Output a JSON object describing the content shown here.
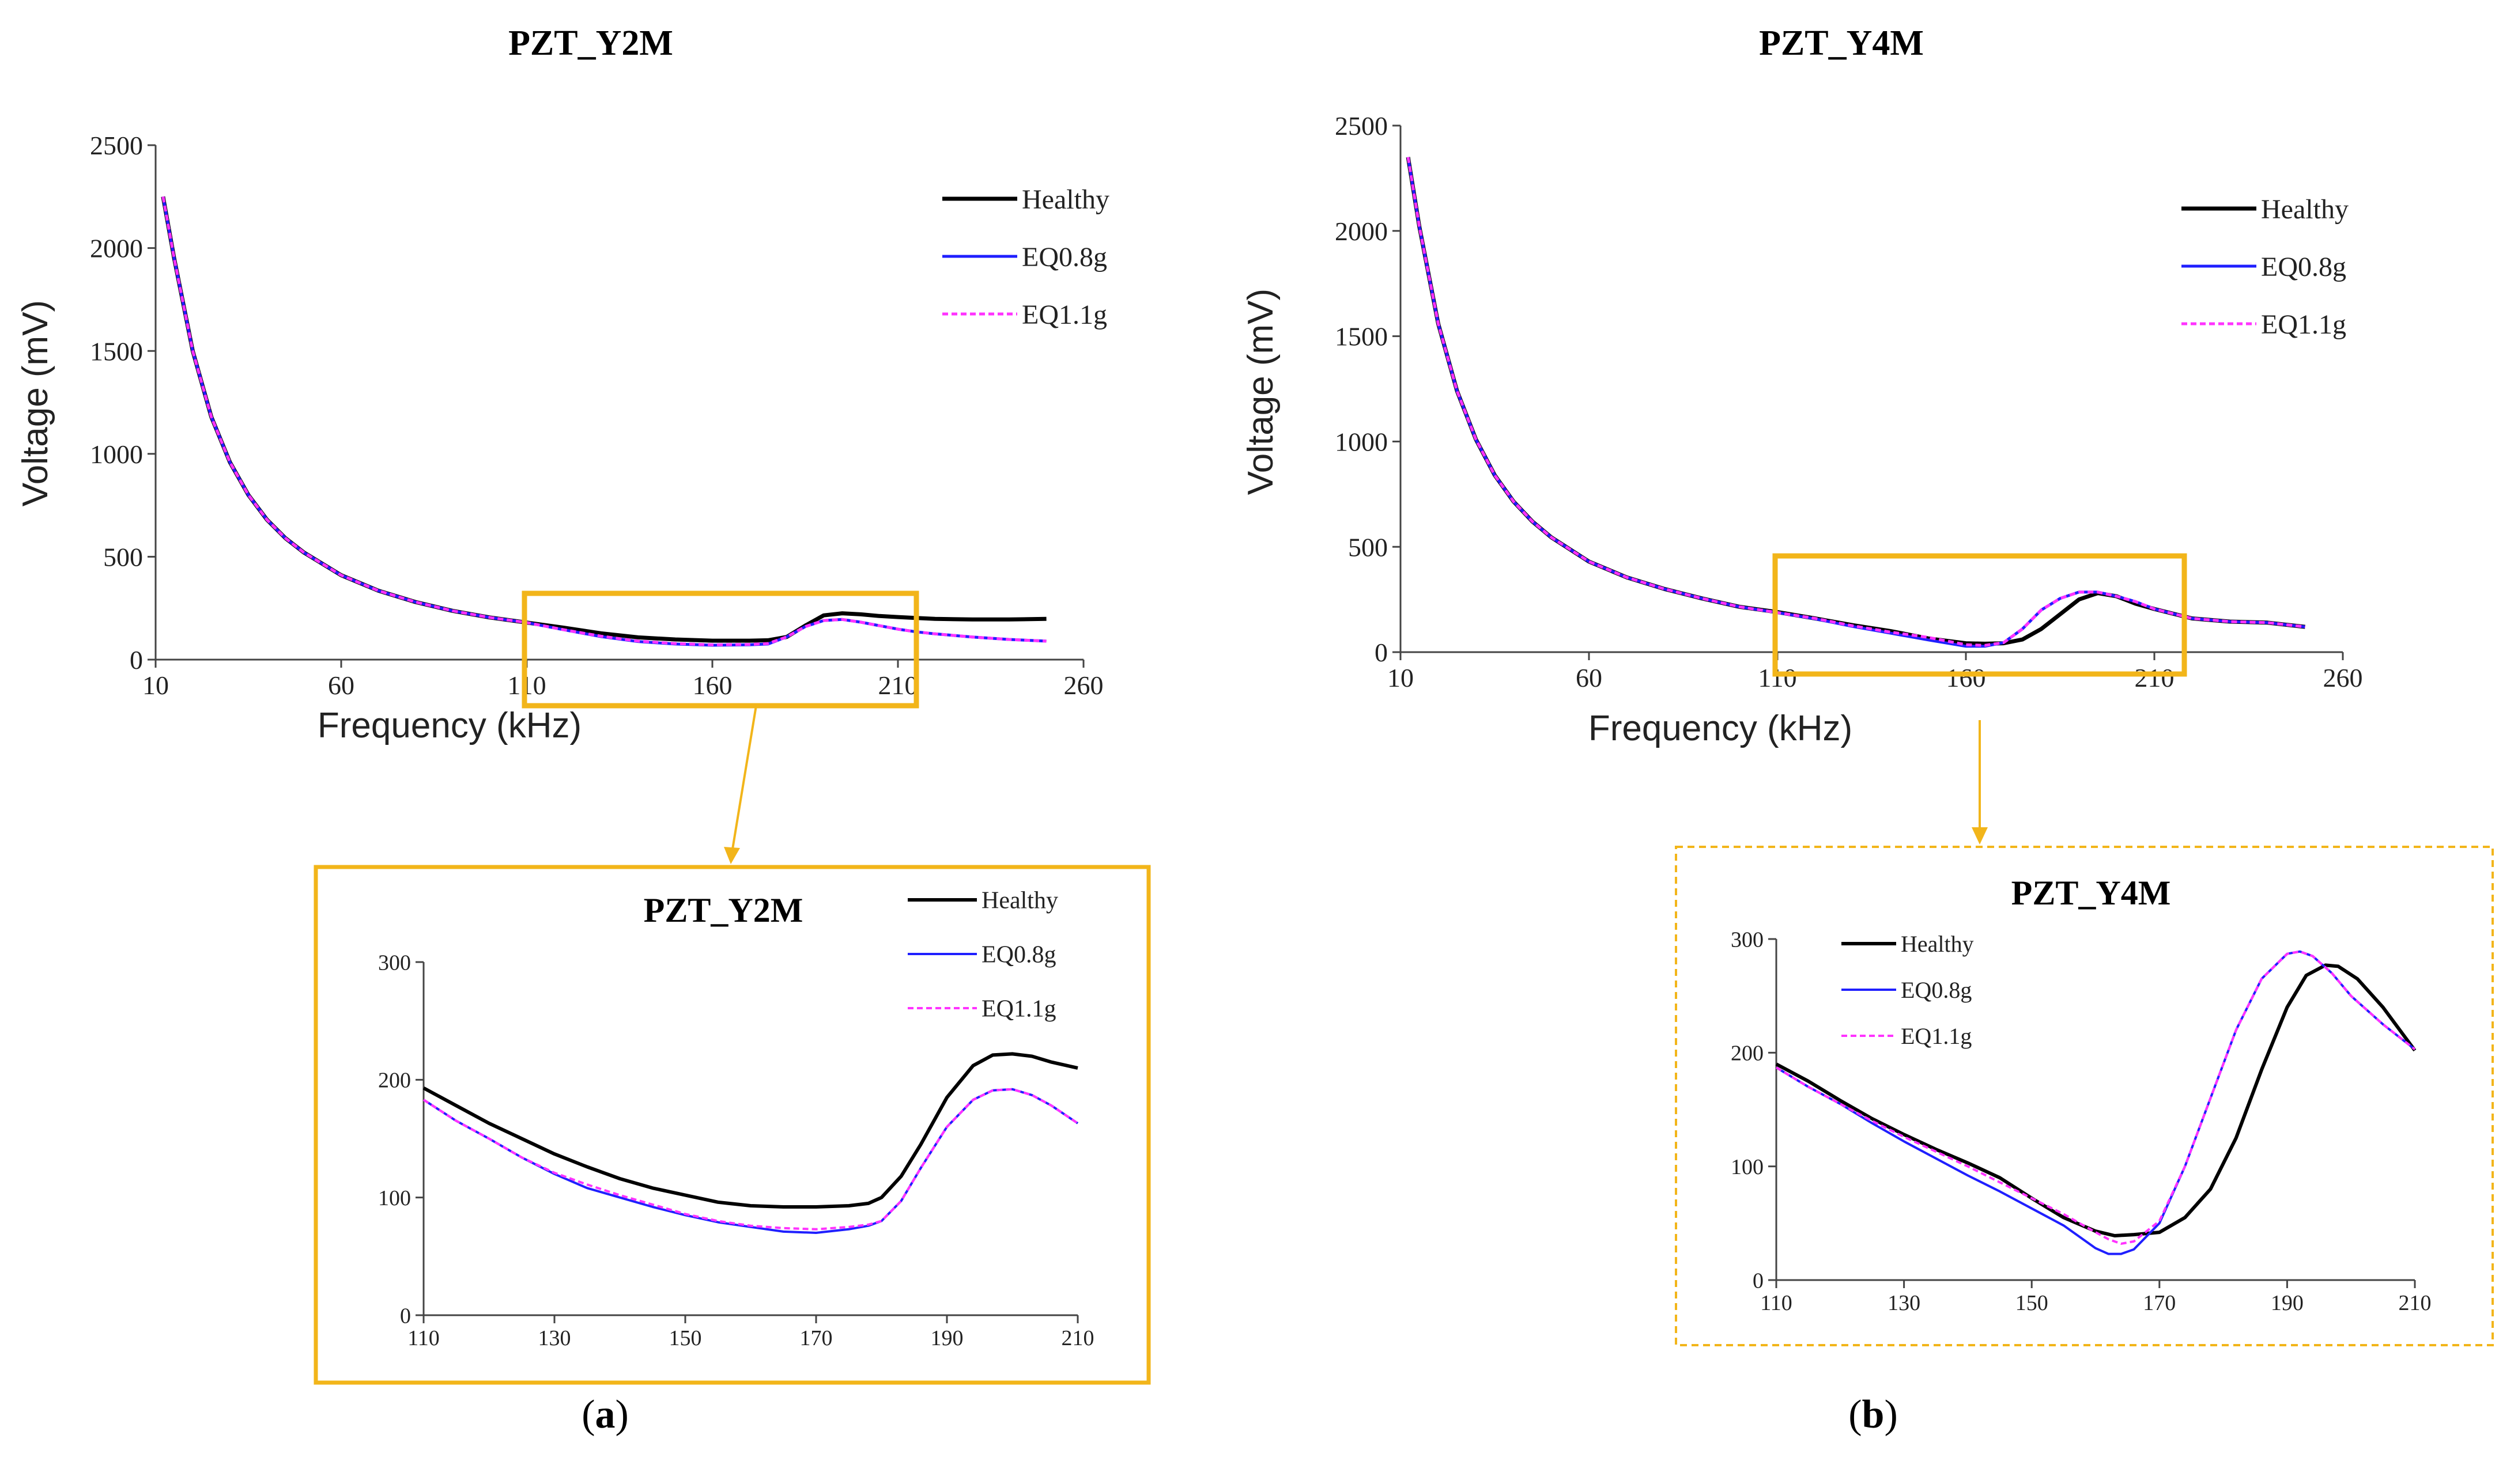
{
  "panels": [
    {
      "label": "a",
      "colors": {
        "Healthy": "#000000",
        "EQ0.8g": "#1f1fff",
        "EQ1.1g": "#ff33ff",
        "zoom_box": "#f2b51a"
      },
      "main": {
        "type": "line",
        "title": "PZT_Y2M",
        "xlabel": "Frequency (kHz)",
        "ylabel": "Voltage (mV)",
        "xlim": [
          10,
          260
        ],
        "ylim": [
          0,
          2500
        ],
        "xticks": [
          "10",
          "60",
          "110",
          "160",
          "210",
          "260"
        ],
        "yticks": [
          "0",
          "500",
          "1000",
          "1500",
          "2000",
          "2500"
        ],
        "legend": [
          "Healthy",
          "EQ0.8g",
          "EQ1.1g"
        ],
        "series": [
          {
            "name": "Healthy",
            "x": [
              12,
              15,
              20,
              25,
              30,
              35,
              40,
              45,
              50,
              60,
              70,
              80,
              90,
              100,
              110,
              120,
              130,
              140,
              150,
              160,
              170,
              175,
              180,
              185,
              190,
              195,
              200,
              205,
              210,
              215,
              220,
              230,
              240,
              250
            ],
            "y": [
              2250,
              1950,
              1500,
              1180,
              960,
              800,
              680,
              590,
              520,
              410,
              335,
              280,
              237,
              205,
              180,
              155,
              128,
              108,
              98,
              92,
              92,
              94,
              110,
              165,
              215,
              225,
              220,
              212,
              207,
              202,
              198,
              195,
              195,
              198
            ]
          },
          {
            "name": "EQ0.8g",
            "x": [
              12,
              15,
              20,
              25,
              30,
              35,
              40,
              45,
              50,
              60,
              70,
              80,
              90,
              100,
              110,
              120,
              130,
              140,
              150,
              160,
              170,
              175,
              180,
              185,
              190,
              195,
              200,
              205,
              210,
              215,
              220,
              230,
              240,
              250
            ],
            "y": [
              2250,
              1950,
              1500,
              1180,
              960,
              800,
              680,
              590,
              520,
              410,
              335,
              280,
              237,
              205,
              180,
              145,
              112,
              88,
              76,
              70,
              72,
              76,
              110,
              160,
              190,
              195,
              182,
              165,
              148,
              135,
              125,
              110,
              98,
              90
            ]
          },
          {
            "name": "EQ1.1g",
            "x": [
              12,
              15,
              20,
              25,
              30,
              35,
              40,
              45,
              50,
              60,
              70,
              80,
              90,
              100,
              110,
              120,
              130,
              140,
              150,
              160,
              170,
              175,
              180,
              185,
              190,
              195,
              200,
              205,
              210,
              215,
              220,
              230,
              240,
              250
            ],
            "y": [
              2250,
              1950,
              1500,
              1180,
              960,
              800,
              680,
              590,
              520,
              410,
              335,
              280,
              237,
              205,
              180,
              145,
              114,
              90,
              78,
              72,
              74,
              78,
              110,
              160,
              190,
              195,
              182,
              165,
              148,
              135,
              125,
              110,
              98,
              90
            ]
          }
        ]
      },
      "inset": {
        "type": "line",
        "title": "PZT_Y2M",
        "xlim": [
          110,
          210
        ],
        "ylim": [
          0,
          300
        ],
        "xticks": [
          "110",
          "130",
          "150",
          "170",
          "190",
          "210"
        ],
        "yticks": [
          "0",
          "100",
          "200",
          "300"
        ],
        "legend": [
          "Healthy",
          "EQ0.8g",
          "EQ1.1g"
        ],
        "series": [
          {
            "name": "Healthy",
            "x": [
              110,
              115,
              120,
              125,
              130,
              135,
              140,
              145,
              150,
              155,
              160,
              165,
              170,
              175,
              178,
              180,
              183,
              186,
              190,
              194,
              197,
              200,
              203,
              206,
              210
            ],
            "y": [
              193,
              178,
              163,
              150,
              137,
              126,
              116,
              108,
              102,
              96,
              93,
              92,
              92,
              93,
              95,
              100,
              118,
              145,
              185,
              212,
              221,
              222,
              220,
              215,
              210
            ]
          },
          {
            "name": "EQ0.8g",
            "x": [
              110,
              115,
              120,
              125,
              130,
              135,
              140,
              145,
              150,
              155,
              160,
              165,
              170,
              175,
              178,
              180,
              183,
              186,
              190,
              194,
              197,
              200,
              203,
              206,
              210
            ],
            "y": [
              183,
              165,
              150,
              134,
              120,
              108,
              100,
              92,
              85,
              79,
              75,
              71,
              70,
              73,
              76,
              80,
              97,
              125,
              160,
              183,
              191,
              192,
              187,
              178,
              163
            ]
          },
          {
            "name": "EQ1.1g",
            "x": [
              110,
              115,
              120,
              125,
              130,
              135,
              140,
              145,
              150,
              155,
              160,
              165,
              170,
              175,
              178,
              180,
              183,
              186,
              190,
              194,
              197,
              200,
              203,
              206,
              210
            ],
            "y": [
              183,
              165,
              150,
              134,
              121,
              111,
              102,
              94,
              86,
              80,
              76,
              74,
              73,
              75,
              77,
              80,
              97,
              125,
              160,
              183,
              191,
              192,
              187,
              178,
              163
            ]
          }
        ]
      }
    },
    {
      "label": "b",
      "colors": {
        "Healthy": "#000000",
        "EQ0.8g": "#1f1fff",
        "EQ1.1g": "#ff33ff",
        "zoom_box": "#f2b51a"
      },
      "main": {
        "type": "line",
        "title": "PZT_Y4M",
        "xlabel": "Frequency (kHz)",
        "ylabel": "Voltage (mV)",
        "xlim": [
          10,
          260
        ],
        "ylim": [
          0,
          2500
        ],
        "xticks": [
          "10",
          "60",
          "110",
          "160",
          "210",
          "260"
        ],
        "yticks": [
          "0",
          "500",
          "1000",
          "1500",
          "2000",
          "2500"
        ],
        "legend": [
          "Healthy",
          "EQ0.8g",
          "EQ1.1g"
        ],
        "series": [
          {
            "name": "Healthy",
            "x": [
              12,
              15,
              20,
              25,
              30,
              35,
              40,
              45,
              50,
              60,
              70,
              80,
              90,
              100,
              110,
              120,
              130,
              140,
              150,
              160,
              165,
              170,
              175,
              180,
              185,
              190,
              195,
              200,
              205,
              210,
              220,
              230,
              240,
              250
            ],
            "y": [
              2350,
              2020,
              1560,
              1240,
              1010,
              840,
              715,
              620,
              545,
              430,
              355,
              300,
              255,
              215,
              190,
              160,
              128,
              100,
              65,
              42,
              40,
              42,
              60,
              110,
              180,
              250,
              280,
              265,
              230,
              205,
              160,
              145,
              140,
              120
            ]
          },
          {
            "name": "EQ0.8g",
            "x": [
              12,
              15,
              20,
              25,
              30,
              35,
              40,
              45,
              50,
              60,
              70,
              80,
              90,
              100,
              110,
              120,
              130,
              140,
              150,
              160,
              165,
              170,
              175,
              180,
              185,
              190,
              195,
              200,
              205,
              210,
              220,
              230,
              240,
              250
            ],
            "y": [
              2350,
              2020,
              1560,
              1240,
              1010,
              840,
              715,
              620,
              545,
              430,
              355,
              300,
              255,
              215,
              188,
              158,
              122,
              90,
              58,
              28,
              28,
              45,
              110,
              200,
              255,
              285,
              285,
              265,
              240,
              205,
              160,
              145,
              140,
              120
            ]
          },
          {
            "name": "EQ1.1g",
            "x": [
              12,
              15,
              20,
              25,
              30,
              35,
              40,
              45,
              50,
              60,
              70,
              80,
              90,
              100,
              110,
              120,
              130,
              140,
              150,
              160,
              165,
              170,
              175,
              180,
              185,
              190,
              195,
              200,
              205,
              210,
              220,
              230,
              240,
              250
            ],
            "y": [
              2350,
              2020,
              1560,
              1240,
              1010,
              840,
              715,
              620,
              545,
              430,
              355,
              300,
              255,
              215,
              188,
              160,
              125,
              95,
              70,
              35,
              32,
              45,
              110,
              200,
              255,
              285,
              285,
              265,
              240,
              205,
              160,
              145,
              140,
              120
            ]
          }
        ]
      },
      "inset": {
        "type": "line",
        "title": "PZT_Y4M",
        "xlim": [
          110,
          210
        ],
        "ylim": [
          0,
          300
        ],
        "xticks": [
          "110",
          "130",
          "150",
          "170",
          "190",
          "210"
        ],
        "yticks": [
          "0",
          "100",
          "200",
          "300"
        ],
        "legend": [
          "Healthy",
          "EQ0.8g",
          "EQ1.1g"
        ],
        "series": [
          {
            "name": "Healthy",
            "x": [
              110,
              115,
              120,
              125,
              130,
              135,
              140,
              145,
              150,
              155,
              160,
              163,
              166,
              170,
              174,
              178,
              182,
              186,
              190,
              193,
              196,
              198,
              201,
              205,
              210
            ],
            "y": [
              190,
              175,
              158,
              142,
              128,
              115,
              103,
              90,
              72,
              55,
              43,
              39,
              40,
              42,
              55,
              80,
              125,
              185,
              240,
              268,
              277,
              276,
              265,
              240,
              202
            ]
          },
          {
            "name": "EQ0.8g",
            "x": [
              110,
              115,
              120,
              125,
              130,
              135,
              140,
              145,
              150,
              155,
              160,
              162,
              164,
              166,
              170,
              174,
              178,
              182,
              186,
              190,
              192,
              194,
              197,
              200,
              205,
              210
            ],
            "y": [
              187,
              170,
              155,
              138,
              122,
              107,
              92,
              78,
              63,
              48,
              28,
              23,
              23,
              27,
              50,
              100,
              160,
              220,
              265,
              287,
              289,
              285,
              270,
              250,
              225,
              203
            ]
          },
          {
            "name": "EQ1.1g",
            "x": [
              110,
              115,
              120,
              125,
              130,
              135,
              140,
              145,
              150,
              155,
              160,
              162,
              164,
              166,
              170,
              174,
              178,
              182,
              186,
              190,
              192,
              194,
              197,
              200,
              205,
              210
            ],
            "y": [
              187,
              170,
              155,
              140,
              126,
              113,
              100,
              86,
              72,
              58,
              42,
              36,
              32,
              34,
              52,
              100,
              160,
              220,
              265,
              287,
              289,
              285,
              270,
              250,
              225,
              203
            ]
          }
        ]
      }
    }
  ]
}
